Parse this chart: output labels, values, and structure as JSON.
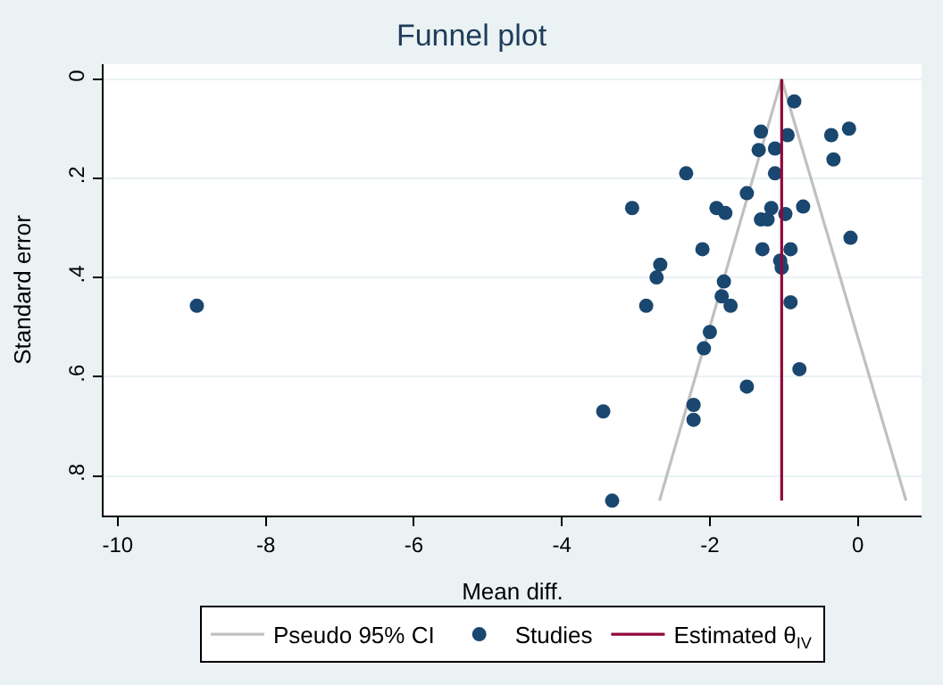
{
  "chart_data": {
    "type": "scatter",
    "title": "Funnel plot",
    "xlabel": "Mean diff.",
    "ylabel": "Standard error",
    "xlim": [
      -10.19,
      0.86
    ],
    "xticks": [
      -10,
      -8,
      -6,
      -4,
      -2,
      0
    ],
    "ylim": [
      0.88,
      -0.03
    ],
    "yticks": [
      {
        "value": 0,
        "label": "0"
      },
      {
        "value": 0.2,
        "label": ".2"
      },
      {
        "value": 0.4,
        "label": ".4"
      },
      {
        "value": 0.6,
        "label": ".6"
      },
      {
        "value": 0.8,
        "label": ".8"
      }
    ],
    "grid": "y",
    "legend": "bottom",
    "series": [
      {
        "name": "Pseudo 95% CI",
        "type": "line",
        "color": "#c0c0c0",
        "marker": "none",
        "x": [
          -2.68,
          -1.03,
          0.65
        ],
        "values": [
          0.85,
          0,
          0.85
        ]
      },
      {
        "name": "Studies",
        "color": "#1a476f",
        "marker": "circle",
        "x": [
          -0.86,
          -1.31,
          -0.95,
          -0.36,
          -0.12,
          -1.34,
          -1.12,
          -0.33,
          -2.32,
          -1.12,
          -1.5,
          -3.05,
          -1.91,
          -1.79,
          -1.17,
          -0.74,
          -1.31,
          -1.22,
          -0.98,
          -0.1,
          -2.1,
          -1.29,
          -0.91,
          -1.05,
          -1.03,
          -2.67,
          -2.72,
          -1.81,
          -2.86,
          -1.84,
          -1.72,
          -0.91,
          -2.0,
          -2.08,
          -0.79,
          -1.5,
          -3.44,
          -2.22,
          -2.22,
          -3.32,
          -8.93
        ],
        "values": [
          0.045,
          0.106,
          0.113,
          0.113,
          0.1,
          0.143,
          0.14,
          0.162,
          0.19,
          0.19,
          0.23,
          0.26,
          0.26,
          0.27,
          0.26,
          0.257,
          0.283,
          0.283,
          0.272,
          0.32,
          0.343,
          0.343,
          0.343,
          0.366,
          0.38,
          0.374,
          0.4,
          0.408,
          0.457,
          0.438,
          0.457,
          0.45,
          0.51,
          0.543,
          0.585,
          0.62,
          0.67,
          0.657,
          0.687,
          0.85,
          0.457
        ]
      },
      {
        "name": "Estimated θ$_{IV}$",
        "type": "line",
        "color": "#90053b",
        "marker": "none",
        "x": [
          -1.03,
          -1.03
        ],
        "values": [
          0,
          0.85
        ]
      }
    ]
  }
}
